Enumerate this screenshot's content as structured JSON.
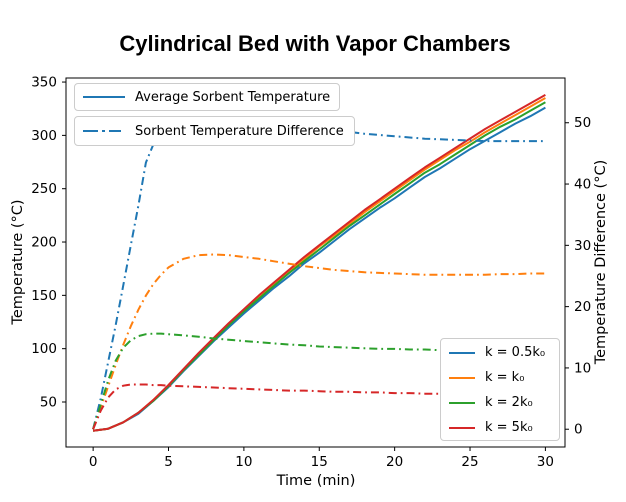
{
  "title": "Cylindrical Bed with Vapor Chambers",
  "axes": {
    "x": {
      "label": "Time (min)",
      "ticks": [
        0,
        5,
        10,
        15,
        20,
        25,
        30
      ],
      "range": [
        -1.8,
        31.3
      ]
    },
    "y_left": {
      "label": "Temperature (°C)",
      "ticks": [
        50,
        100,
        150,
        200,
        250,
        300,
        350
      ],
      "range": [
        7.8,
        353.8
      ]
    },
    "y_right": {
      "label": "Temperature Difference (°C)",
      "ticks": [
        0,
        10,
        20,
        30,
        40,
        50
      ],
      "range": [
        -2.9,
        57.3
      ]
    }
  },
  "legends": {
    "avg": {
      "label": "Average Sorbent Temperature",
      "color": "#1f77b4",
      "style": "solid"
    },
    "diff": {
      "label": "Sorbent Temperature Difference",
      "color": "#1f77b4",
      "style": "dashdot"
    },
    "series": [
      {
        "label": "k = 0.5k₀",
        "color": "#1f77b4"
      },
      {
        "label": "k = k₀",
        "color": "#ff7f0e"
      },
      {
        "label": "k = 2k₀",
        "color": "#2ca02c"
      },
      {
        "label": "k = 5k₀",
        "color": "#d62728"
      }
    ]
  },
  "chart_data": {
    "type": "line",
    "title": "Cylindrical Bed with Vapor Chambers",
    "xlabel": "Time (min)",
    "ylabel_left": "Temperature (°C)",
    "ylabel_right": "Temperature Difference (°C)",
    "xlim": [
      -1.8,
      31.3
    ],
    "ylim_left": [
      7.8,
      353.8
    ],
    "ylim_right": [
      -2.9,
      57.3
    ],
    "grid": false,
    "temperature_series": {
      "axis": "left",
      "style": "solid",
      "x": [
        0,
        1,
        2,
        3,
        4,
        5,
        6,
        7,
        8,
        9,
        10,
        11,
        12,
        13,
        14,
        15,
        16,
        17,
        18,
        19,
        20,
        21,
        22,
        23,
        24,
        25,
        26,
        27,
        28,
        29,
        30
      ],
      "series": [
        {
          "name": "k = 0.5k₀",
          "color": "#1f77b4",
          "values": [
            23,
            25,
            31,
            39,
            51,
            64,
            79,
            93,
            107,
            120,
            133,
            145,
            157,
            168,
            180,
            190,
            201,
            212,
            222,
            232,
            241,
            251,
            261,
            269,
            278,
            287,
            295,
            303,
            311,
            318,
            326
          ]
        },
        {
          "name": "k = k₀",
          "color": "#ff7f0e",
          "values": [
            23,
            25,
            31,
            40,
            52,
            65,
            80,
            95,
            109,
            123,
            136,
            149,
            161,
            173,
            184,
            196,
            206,
            217,
            228,
            238,
            248,
            258,
            268,
            277,
            286,
            294,
            303,
            311,
            319,
            327,
            335
          ]
        },
        {
          "name": "k = 2k₀",
          "color": "#2ca02c",
          "values": [
            23,
            25,
            31,
            40,
            51,
            65,
            80,
            94,
            108,
            122,
            135,
            147,
            159,
            171,
            182,
            193,
            204,
            215,
            225,
            235,
            245,
            255,
            265,
            273,
            282,
            291,
            300,
            308,
            315,
            323,
            331
          ]
        },
        {
          "name": "k = 5k₀",
          "color": "#d62728",
          "values": [
            23,
            25,
            31,
            40,
            52,
            66,
            81,
            96,
            110,
            124,
            137,
            150,
            162,
            174,
            186,
            197,
            208,
            219,
            230,
            240,
            250,
            260,
            270,
            279,
            288,
            297,
            306,
            314,
            322,
            330,
            338
          ]
        }
      ]
    },
    "difference_series": {
      "axis": "right",
      "style": "dashdot",
      "x": [
        0,
        0.5,
        1,
        1.5,
        2,
        2.5,
        3,
        3.5,
        4,
        4.5,
        5,
        6,
        7,
        8,
        9,
        10,
        11,
        12,
        13,
        14,
        15,
        16,
        17,
        18,
        19,
        20,
        21,
        22,
        23,
        24,
        25,
        26,
        27,
        28,
        29,
        30
      ],
      "series": [
        {
          "name": "k = 0.5k₀",
          "color": "#1f77b4",
          "values": [
            0,
            5,
            11,
            17,
            23.5,
            30,
            36.5,
            43.5,
            46.5,
            48,
            49,
            50,
            50.4,
            50.6,
            50.7,
            50.6,
            50.4,
            50.1,
            49.8,
            49.4,
            49.1,
            48.8,
            48.5,
            48.2,
            48,
            47.8,
            47.6,
            47.4,
            47.3,
            47.2,
            47.1,
            47,
            47,
            47,
            47,
            47
          ]
        },
        {
          "name": "k = k₀",
          "color": "#ff7f0e",
          "values": [
            0,
            3.5,
            7,
            10.5,
            13.8,
            16.8,
            19.5,
            21.8,
            23.7,
            25.2,
            26.4,
            27.8,
            28.4,
            28.5,
            28.4,
            28.1,
            27.8,
            27.4,
            27,
            26.6,
            26.3,
            26,
            25.8,
            25.6,
            25.5,
            25.4,
            25.3,
            25.2,
            25.2,
            25.2,
            25.2,
            25.2,
            25.3,
            25.3,
            25.4,
            25.4
          ]
        },
        {
          "name": "k = 2k₀",
          "color": "#2ca02c",
          "values": [
            0,
            4,
            8,
            11.2,
            13.3,
            14.5,
            15.2,
            15.5,
            15.6,
            15.6,
            15.5,
            15.3,
            15.1,
            14.8,
            14.6,
            14.4,
            14.2,
            14,
            13.8,
            13.7,
            13.5,
            13.4,
            13.3,
            13.2,
            13.1,
            13.1,
            13,
            13,
            12.9,
            12.9,
            12.8,
            12.8,
            12.8,
            12.7,
            12.7,
            12.7
          ]
        },
        {
          "name": "k = 5k₀",
          "color": "#d62728",
          "values": [
            0,
            3,
            5.2,
            6.5,
            7.1,
            7.3,
            7.3,
            7.3,
            7.2,
            7.2,
            7.1,
            7,
            6.9,
            6.8,
            6.7,
            6.6,
            6.5,
            6.4,
            6.3,
            6.3,
            6.2,
            6.1,
            6.1,
            6,
            6,
            5.9,
            5.9,
            5.8,
            5.8,
            5.8,
            5.7,
            5.7,
            5.7,
            5.6,
            5.6,
            5.6
          ]
        }
      ]
    }
  }
}
